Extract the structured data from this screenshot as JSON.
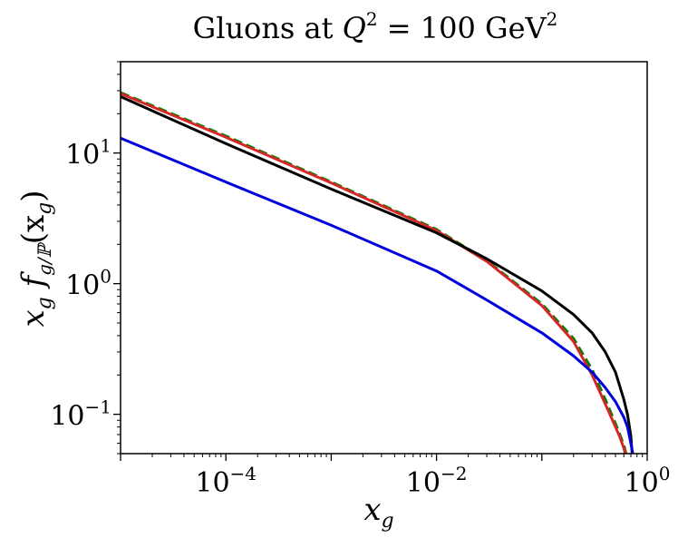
{
  "chart_data": {
    "type": "line",
    "title_parts": {
      "text": "Gluons at ",
      "var": "Q",
      "exp": "2",
      "value": " = 100 GeV",
      "unit_exp": "2"
    },
    "xlabel": {
      "base": "x",
      "sub": "g"
    },
    "ylabel": {
      "text": "x",
      "sub1": "g",
      "mid": " f",
      "sub2": "g/ℙ",
      "arg": "(x",
      "arg_sub": "g",
      "close": ")"
    },
    "x_scale": "log",
    "y_scale": "log",
    "xlim": [
      1e-05,
      1
    ],
    "ylim": [
      0.05,
      50
    ],
    "x_ticks": [
      {
        "value": 0.0001,
        "base": "10",
        "exp": "−4"
      },
      {
        "value": 0.01,
        "base": "10",
        "exp": "−2"
      },
      {
        "value": 1,
        "base": "10",
        "exp": "0"
      }
    ],
    "y_ticks": [
      {
        "value": 0.1,
        "base": "10",
        "exp": "−1"
      },
      {
        "value": 1,
        "base": "10",
        "exp": "0"
      },
      {
        "value": 10,
        "base": "10",
        "exp": "1"
      }
    ],
    "grid": false,
    "legend": "none",
    "series": [
      {
        "color": "#008000",
        "dash": "dashed",
        "x": [
          1e-05,
          0.0001,
          0.001,
          0.01,
          0.03,
          0.1,
          0.2,
          0.3,
          0.4,
          0.5,
          0.55,
          0.6,
          0.63
        ],
        "y": [
          29,
          13.5,
          6.0,
          2.6,
          1.5,
          0.7,
          0.38,
          0.22,
          0.13,
          0.085,
          0.07,
          0.058,
          0.05
        ]
      },
      {
        "color": "#d62728",
        "dash": "solid",
        "x": [
          1e-05,
          0.0001,
          0.001,
          0.01,
          0.03,
          0.1,
          0.2,
          0.3,
          0.4,
          0.5,
          0.55,
          0.6,
          0.62
        ],
        "y": [
          28.5,
          13.2,
          5.9,
          2.55,
          1.48,
          0.68,
          0.36,
          0.2,
          0.12,
          0.08,
          0.067,
          0.055,
          0.05
        ]
      },
      {
        "color": "#000000",
        "dash": "solid",
        "x": [
          1e-05,
          0.0001,
          0.001,
          0.01,
          0.03,
          0.1,
          0.2,
          0.3,
          0.4,
          0.5,
          0.6,
          0.65,
          0.7,
          0.72
        ],
        "y": [
          27,
          11.8,
          5.3,
          2.45,
          1.55,
          0.88,
          0.58,
          0.42,
          0.3,
          0.21,
          0.13,
          0.1,
          0.068,
          0.05
        ]
      },
      {
        "color": "#0000dd",
        "dash": "solid",
        "x": [
          1e-05,
          0.0001,
          0.001,
          0.01,
          0.03,
          0.1,
          0.2,
          0.3,
          0.4,
          0.5,
          0.6,
          0.65,
          0.7,
          0.73
        ],
        "y": [
          13,
          6.0,
          2.8,
          1.25,
          0.75,
          0.42,
          0.28,
          0.21,
          0.16,
          0.125,
          0.095,
          0.08,
          0.06,
          0.05
        ]
      }
    ]
  }
}
